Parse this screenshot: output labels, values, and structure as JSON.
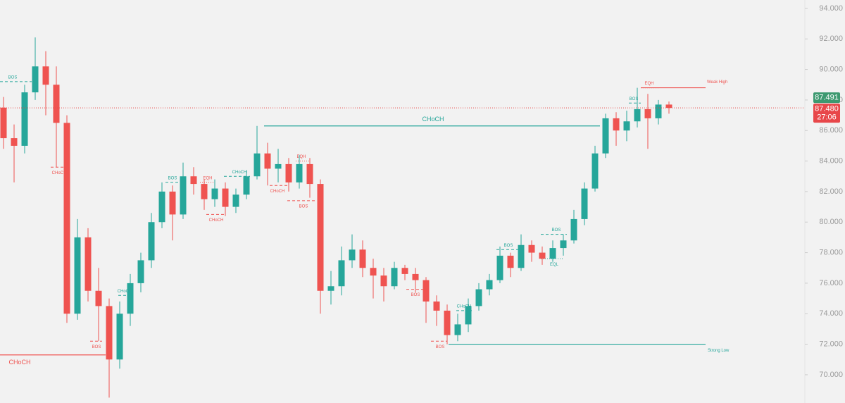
{
  "chart_data": {
    "type": "candlestick",
    "colors": {
      "up": "#26a69a",
      "down": "#ef5350"
    },
    "open": [
      87.5,
      85.5,
      85,
      88.5,
      90.2,
      89,
      86.5,
      74,
      79,
      75.5,
      74.5,
      71,
      74,
      76,
      77.5,
      80,
      82,
      80.5,
      83,
      82.5,
      81.5,
      82.2,
      81,
      81.8,
      83,
      84.5,
      83.5,
      83.8,
      82.6,
      83.8,
      82.5,
      75.5,
      75.8,
      77.5,
      78.2,
      77,
      76.5,
      75.8,
      77,
      76.6,
      76.2,
      74.8,
      74.2,
      72.6,
      73.3,
      74.5,
      75.6,
      76.2,
      77.8,
      77,
      78.5,
      78,
      77.6,
      78.3,
      78.8,
      80.2,
      82.2,
      84.5,
      86.8,
      86,
      86.6,
      87.4,
      86.8,
      87.7
    ],
    "high": [
      88.2,
      86.4,
      89,
      92.1,
      91.2,
      90.2,
      87,
      80.2,
      79.6,
      77,
      75,
      74.8,
      76.6,
      78,
      80.6,
      82.6,
      82.4,
      83.9,
      83.6,
      82.8,
      82.8,
      82.6,
      82.2,
      83.4,
      86.3,
      85.2,
      84.8,
      84.2,
      84.4,
      84.2,
      82.8,
      76.8,
      78.4,
      79.2,
      78.8,
      77.6,
      77,
      77.4,
      77.2,
      77,
      76.4,
      75.2,
      74.6,
      74,
      75,
      76,
      76.6,
      78.4,
      78,
      79.2,
      78.8,
      78.4,
      78.8,
      79.2,
      80.8,
      82.6,
      85,
      87.1,
      87.2,
      87.3,
      88.8,
      88.4,
      88,
      87.9
    ],
    "low": [
      84.8,
      82.6,
      84.5,
      88,
      87,
      83.6,
      73.4,
      73.6,
      74.8,
      72.2,
      68.5,
      70.4,
      73.2,
      75.4,
      77,
      79.6,
      78.8,
      80.2,
      81.8,
      80.8,
      81,
      80.4,
      80.6,
      81.5,
      82.8,
      82.4,
      82.6,
      82,
      82.2,
      81.6,
      74,
      74.6,
      75.2,
      77,
      76.4,
      75,
      74.8,
      75.6,
      76.2,
      75.4,
      73.4,
      73.2,
      72,
      72.2,
      72.8,
      74.2,
      75.2,
      76,
      76.4,
      76.8,
      77.4,
      77.2,
      77.4,
      77.8,
      78.6,
      79.8,
      82,
      84.2,
      85,
      85.3,
      86.2,
      84.8,
      86.4,
      87.1
    ],
    "close": [
      85.5,
      85,
      88.5,
      90.2,
      89,
      86.5,
      74,
      79,
      75.5,
      74.5,
      71,
      74,
      76,
      77.5,
      80,
      82,
      80.5,
      83,
      82.5,
      81.5,
      82.2,
      81,
      81.8,
      83,
      84.5,
      83.5,
      83.8,
      82.6,
      83.8,
      82.5,
      75.5,
      75.8,
      77.5,
      78.2,
      77,
      76.5,
      75.8,
      77,
      76.6,
      76.2,
      74.8,
      74.2,
      72.6,
      73.3,
      74.5,
      75.6,
      76.2,
      77.8,
      77,
      78.5,
      78,
      77.6,
      78.3,
      78.8,
      80.2,
      82.2,
      84.5,
      86.8,
      86,
      86.6,
      87.4,
      86.8,
      87.7,
      87.48
    ],
    "ylim": [
      68.15,
      94.55
    ],
    "yticks": [
      {
        "value": 70,
        "label": "70.000"
      },
      {
        "value": 72,
        "label": "72.000"
      },
      {
        "value": 74,
        "label": "74.000"
      },
      {
        "value": 76,
        "label": "76.000"
      },
      {
        "value": 78,
        "label": "78.000"
      },
      {
        "value": 80,
        "label": "80.000"
      },
      {
        "value": 82,
        "label": "82.000"
      },
      {
        "value": 84,
        "label": "84.000"
      },
      {
        "value": 86,
        "label": "86.000"
      },
      {
        "value": 88,
        "label": "88.000"
      },
      {
        "value": 90,
        "label": "90.000"
      },
      {
        "value": 92,
        "label": "92.000"
      },
      {
        "value": 94,
        "label": "94.000"
      }
    ],
    "last_price": {
      "value": 87.491,
      "label": "87.491",
      "color": "#3d9970"
    },
    "current_price": {
      "value": 87.48,
      "label": "87.480",
      "countdown": "27:06",
      "color": "#e8474a"
    },
    "annotations": [
      {
        "text": "BOS",
        "level": 89.2,
        "color": "#26a69a",
        "style": "dashed"
      },
      {
        "text": "CHoCH",
        "level": 83.6,
        "color": "#ef5350",
        "style": "dashed"
      },
      {
        "text": "CHoCH",
        "level": 71.3,
        "color": "#ef5350",
        "style": "solid",
        "emphasis": true
      },
      {
        "text": "BOS",
        "level": 72.2,
        "color": "#ef5350",
        "style": "dashed"
      },
      {
        "text": "CHoCH",
        "level": 75.2,
        "color": "#26a69a",
        "style": "dashed"
      },
      {
        "text": "BOS",
        "level": 82.6,
        "color": "#26a69a",
        "style": "dashed"
      },
      {
        "text": "EQH",
        "level": 82.6,
        "color": "#ef5350",
        "style": "dotted"
      },
      {
        "text": "CHoCH",
        "level": 80.5,
        "color": "#ef5350",
        "style": "dashed"
      },
      {
        "text": "CHoCH",
        "level": 83,
        "color": "#26a69a",
        "style": "dashed"
      },
      {
        "text": "CHoCH",
        "level": 86.3,
        "color": "#26a69a",
        "style": "solid",
        "emphasis": true
      },
      {
        "text": "CHoCH",
        "level": 82.4,
        "color": "#ef5350",
        "style": "dashed"
      },
      {
        "text": "EQH",
        "level": 84,
        "color": "#ef5350",
        "style": "dotted"
      },
      {
        "text": "BOS",
        "level": 81.4,
        "color": "#ef5350",
        "style": "dashed"
      },
      {
        "text": "BOS",
        "level": 75.6,
        "color": "#ef5350",
        "style": "dashed"
      },
      {
        "text": "CHoCH",
        "level": 74.2,
        "color": "#26a69a",
        "style": "dashed"
      },
      {
        "text": "BOS",
        "level": 72.2,
        "color": "#ef5350",
        "style": "dashed"
      },
      {
        "text": "Strong Low",
        "level": 72,
        "color": "#26a69a",
        "style": "solid"
      },
      {
        "text": "BOS",
        "level": 78.2,
        "color": "#26a69a",
        "style": "dashed"
      },
      {
        "text": "BOS",
        "level": 79.2,
        "color": "#26a69a",
        "style": "dashed"
      },
      {
        "text": "EQL",
        "level": 77.6,
        "color": "#26a69a",
        "style": "dotted"
      },
      {
        "text": "BOS",
        "level": 87.8,
        "color": "#26a69a",
        "style": "dashed"
      },
      {
        "text": "EQH",
        "level": 88.8,
        "color": "#ef5350",
        "style": "dotted"
      },
      {
        "text": "Weak High",
        "level": 88.8,
        "color": "#ef5350",
        "style": "solid"
      }
    ]
  }
}
